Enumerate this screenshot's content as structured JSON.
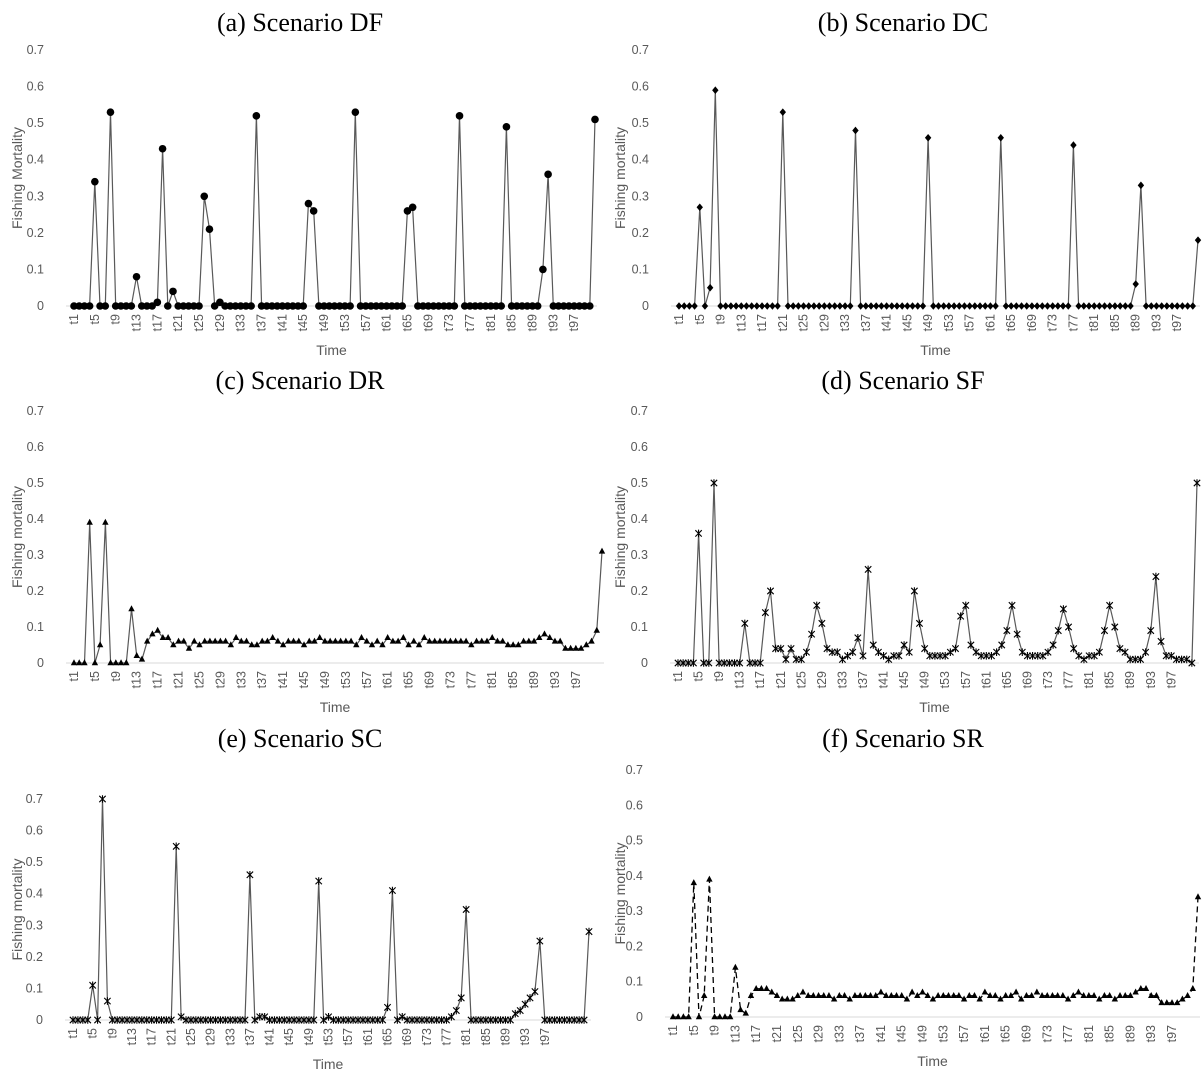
{
  "chart_data": [
    {
      "type": "line",
      "title": "(a) Scenario DF",
      "xlabel": "Time",
      "ylabel": "Fishing Mortality",
      "ylim": [
        0,
        0.7
      ],
      "yticks": [
        "0",
        "0.1",
        "0.2",
        "0.3",
        "0.4",
        "0.5",
        "0.6",
        "0.7"
      ],
      "xticks": [
        "t1",
        "t5",
        "t9",
        "t13",
        "t17",
        "t21",
        "t25",
        "t29",
        "t33",
        "t37",
        "t41",
        "t45",
        "t49",
        "t53",
        "t57",
        "t61",
        "t65",
        "t69",
        "t73",
        "t77",
        "t81",
        "t85",
        "t89",
        "t93",
        "t97"
      ],
      "marker": "circle",
      "dash": false,
      "grid": false,
      "values": [
        0,
        0,
        0,
        0,
        0.34,
        0,
        0,
        0.53,
        0,
        0,
        0,
        0,
        0.08,
        0,
        0,
        0,
        0.01,
        0.43,
        0,
        0.04,
        0,
        0,
        0,
        0,
        0,
        0.3,
        0.21,
        0,
        0.01,
        0,
        0,
        0,
        0,
        0,
        0,
        0.52,
        0,
        0,
        0,
        0,
        0,
        0,
        0,
        0,
        0,
        0.28,
        0.26,
        0,
        0,
        0,
        0,
        0,
        0,
        0,
        0.53,
        0,
        0,
        0,
        0,
        0,
        0,
        0,
        0,
        0,
        0.26,
        0.27,
        0,
        0,
        0,
        0,
        0,
        0,
        0,
        0,
        0.52,
        0,
        0,
        0,
        0,
        0,
        0,
        0,
        0,
        0.49,
        0,
        0,
        0,
        0,
        0,
        0,
        0.1,
        0.36,
        0,
        0,
        0,
        0,
        0,
        0,
        0,
        0,
        0.51
      ]
    },
    {
      "type": "line",
      "title": "(b) Scenario DC",
      "xlabel": "Time",
      "ylabel": "Fishing mortality",
      "ylim": [
        0,
        0.7
      ],
      "yticks": [
        "0",
        "0.1",
        "0.2",
        "0.3",
        "0.4",
        "0.5",
        "0.6",
        "0.7"
      ],
      "xticks": [
        "t1",
        "t5",
        "t9",
        "t13",
        "t17",
        "t21",
        "t25",
        "t29",
        "t33",
        "t37",
        "t41",
        "t45",
        "t49",
        "t53",
        "t57",
        "t61",
        "t65",
        "t69",
        "t73",
        "t77",
        "t81",
        "t85",
        "t89",
        "t93",
        "t97"
      ],
      "marker": "diamond",
      "dash": false,
      "grid": false,
      "values": [
        0,
        0,
        0,
        0,
        0.27,
        0,
        0.05,
        0.59,
        0,
        0,
        0,
        0,
        0,
        0,
        0,
        0,
        0,
        0,
        0,
        0,
        0.53,
        0,
        0,
        0,
        0,
        0,
        0,
        0,
        0,
        0,
        0,
        0,
        0,
        0,
        0.48,
        0,
        0,
        0,
        0,
        0,
        0,
        0,
        0,
        0,
        0,
        0,
        0,
        0,
        0.46,
        0,
        0,
        0,
        0,
        0,
        0,
        0,
        0,
        0,
        0,
        0,
        0,
        0,
        0.46,
        0,
        0,
        0,
        0,
        0,
        0,
        0,
        0,
        0,
        0,
        0,
        0,
        0,
        0.44,
        0,
        0,
        0,
        0,
        0,
        0,
        0,
        0,
        0,
        0,
        0,
        0.06,
        0.33,
        0,
        0,
        0,
        0,
        0,
        0,
        0,
        0,
        0,
        0,
        0.18
      ]
    },
    {
      "type": "line",
      "title": "(c) Scenario DR",
      "xlabel": "Time",
      "ylabel": "Fishing mortality",
      "ylim": [
        0,
        0.7
      ],
      "yticks": [
        "0",
        "0.1",
        "0.2",
        "0.3",
        "0.4",
        "0.5",
        "0.6",
        "0.7"
      ],
      "xticks": [
        "t1",
        "t5",
        "t9",
        "t13",
        "t17",
        "t21",
        "t25",
        "t29",
        "t33",
        "t37",
        "t41",
        "t45",
        "t49",
        "t53",
        "t57",
        "t61",
        "t65",
        "t69",
        "t73",
        "t77",
        "t81",
        "t85",
        "t89",
        "t93",
        "t97"
      ],
      "marker": "triangle",
      "dash": false,
      "grid": false,
      "values": [
        0,
        0,
        0,
        0.39,
        0,
        0.05,
        0.39,
        0,
        0,
        0,
        0,
        0.15,
        0.02,
        0.01,
        0.06,
        0.08,
        0.09,
        0.07,
        0.07,
        0.05,
        0.06,
        0.06,
        0.04,
        0.06,
        0.05,
        0.06,
        0.06,
        0.06,
        0.06,
        0.06,
        0.05,
        0.07,
        0.06,
        0.06,
        0.05,
        0.05,
        0.06,
        0.06,
        0.07,
        0.06,
        0.05,
        0.06,
        0.06,
        0.06,
        0.05,
        0.06,
        0.06,
        0.07,
        0.06,
        0.06,
        0.06,
        0.06,
        0.06,
        0.06,
        0.05,
        0.07,
        0.06,
        0.05,
        0.06,
        0.05,
        0.07,
        0.06,
        0.06,
        0.07,
        0.05,
        0.06,
        0.05,
        0.07,
        0.06,
        0.06,
        0.06,
        0.06,
        0.06,
        0.06,
        0.06,
        0.06,
        0.05,
        0.06,
        0.06,
        0.06,
        0.07,
        0.06,
        0.06,
        0.05,
        0.05,
        0.05,
        0.06,
        0.06,
        0.06,
        0.07,
        0.08,
        0.07,
        0.06,
        0.06,
        0.04,
        0.04,
        0.04,
        0.04,
        0.05,
        0.06,
        0.09,
        0.31
      ]
    },
    {
      "type": "line",
      "title": "(d) Scenario SF",
      "xlabel": "Time",
      "ylabel": "Fishing mortality",
      "ylim": [
        0,
        0.7
      ],
      "yticks": [
        "0",
        "0.1",
        "0.2",
        "0.3",
        "0.4",
        "0.5",
        "0.6",
        "0.7"
      ],
      "xticks": [
        "t1",
        "t5",
        "t9",
        "t13",
        "t17",
        "t21",
        "t25",
        "t29",
        "t33",
        "t37",
        "t41",
        "t45",
        "t49",
        "t53",
        "t57",
        "t61",
        "t65",
        "t69",
        "t73",
        "t77",
        "t81",
        "t85",
        "t89",
        "t93",
        "t97"
      ],
      "marker": "star",
      "dash": false,
      "grid": false,
      "values": [
        0,
        0,
        0,
        0,
        0.36,
        0,
        0,
        0.5,
        0,
        0,
        0,
        0,
        0,
        0.11,
        0,
        0,
        0,
        0.14,
        0.2,
        0.04,
        0.04,
        0.01,
        0.04,
        0.01,
        0.01,
        0.03,
        0.08,
        0.16,
        0.11,
        0.04,
        0.03,
        0.03,
        0.01,
        0.02,
        0.03,
        0.07,
        0.02,
        0.26,
        0.05,
        0.03,
        0.02,
        0.01,
        0.02,
        0.02,
        0.05,
        0.03,
        0.2,
        0.11,
        0.04,
        0.02,
        0.02,
        0.02,
        0.02,
        0.03,
        0.04,
        0.13,
        0.16,
        0.05,
        0.03,
        0.02,
        0.02,
        0.02,
        0.03,
        0.05,
        0.09,
        0.16,
        0.08,
        0.03,
        0.02,
        0.02,
        0.02,
        0.02,
        0.03,
        0.05,
        0.09,
        0.15,
        0.1,
        0.04,
        0.02,
        0.01,
        0.02,
        0.02,
        0.03,
        0.09,
        0.16,
        0.1,
        0.04,
        0.03,
        0.01,
        0.01,
        0.01,
        0.03,
        0.09,
        0.24,
        0.06,
        0.02,
        0.02,
        0.01,
        0.01,
        0.01,
        0,
        0.5
      ]
    },
    {
      "type": "line",
      "title": "(e) Scenario SC",
      "xlabel": "Time",
      "ylabel": "Fishing mortality",
      "ylim": [
        0,
        0.7
      ],
      "yticks": [
        "0",
        "0.1",
        "0.2",
        "0.3",
        "0.4",
        "0.5",
        "0.6",
        "0.7"
      ],
      "xticks": [
        "t1",
        "t5",
        "t9",
        "t13",
        "t17",
        "t21",
        "t25",
        "t29",
        "t33",
        "t37",
        "t41",
        "t45",
        "t49",
        "t53",
        "t57",
        "t61",
        "t65",
        "t69",
        "t73",
        "t77",
        "t81",
        "t85",
        "t89",
        "t93",
        "t97"
      ],
      "marker": "star",
      "dash": false,
      "grid": false,
      "values": [
        0,
        0,
        0,
        0,
        0.11,
        0,
        0.7,
        0.06,
        0,
        0,
        0,
        0,
        0,
        0,
        0,
        0,
        0,
        0,
        0,
        0,
        0,
        0.55,
        0.01,
        0,
        0,
        0,
        0,
        0,
        0,
        0,
        0,
        0,
        0,
        0,
        0,
        0,
        0.46,
        0,
        0.01,
        0.01,
        0,
        0,
        0,
        0,
        0,
        0,
        0,
        0,
        0,
        0,
        0.44,
        0,
        0.01,
        0,
        0,
        0,
        0,
        0,
        0,
        0,
        0,
        0,
        0,
        0,
        0.04,
        0.41,
        0,
        0.01,
        0,
        0,
        0,
        0,
        0,
        0,
        0,
        0,
        0,
        0.01,
        0.03,
        0.07,
        0.35,
        0,
        0,
        0,
        0,
        0,
        0,
        0,
        0,
        0,
        0.02,
        0.03,
        0.05,
        0.07,
        0.09,
        0.25,
        0,
        0,
        0,
        0,
        0,
        0,
        0,
        0,
        0,
        0.28
      ]
    },
    {
      "type": "line",
      "title": "(f) Scenario SR",
      "xlabel": "Time",
      "ylabel": "Fishing mortality",
      "ylim": [
        0,
        0.7
      ],
      "yticks": [
        "0",
        "0.1",
        "0.2",
        "0.3",
        "0.4",
        "0.5",
        "0.6",
        "0.7"
      ],
      "xticks": [
        "t1",
        "t5",
        "t9",
        "t13",
        "t17",
        "t21",
        "t25",
        "t29",
        "t33",
        "t37",
        "t41",
        "t45",
        "t49",
        "t53",
        "t57",
        "t61",
        "t65",
        "t69",
        "t73",
        "t77",
        "t81",
        "t85",
        "t89",
        "t93",
        "t97"
      ],
      "marker": "triangle",
      "dash": true,
      "grid": false,
      "values": [
        0,
        0,
        0,
        0,
        0.38,
        0,
        0.06,
        0.39,
        0,
        0,
        0,
        0,
        0.14,
        0.02,
        0.01,
        0.06,
        0.08,
        0.08,
        0.08,
        0.07,
        0.06,
        0.05,
        0.05,
        0.05,
        0.06,
        0.07,
        0.06,
        0.06,
        0.06,
        0.06,
        0.06,
        0.05,
        0.06,
        0.06,
        0.05,
        0.06,
        0.06,
        0.06,
        0.06,
        0.06,
        0.07,
        0.06,
        0.06,
        0.06,
        0.06,
        0.05,
        0.07,
        0.06,
        0.07,
        0.06,
        0.05,
        0.06,
        0.06,
        0.06,
        0.06,
        0.06,
        0.05,
        0.06,
        0.06,
        0.05,
        0.07,
        0.06,
        0.06,
        0.05,
        0.06,
        0.06,
        0.07,
        0.05,
        0.06,
        0.06,
        0.07,
        0.06,
        0.06,
        0.06,
        0.06,
        0.06,
        0.05,
        0.06,
        0.07,
        0.06,
        0.06,
        0.06,
        0.05,
        0.06,
        0.06,
        0.05,
        0.06,
        0.06,
        0.06,
        0.07,
        0.08,
        0.08,
        0.06,
        0.06,
        0.04,
        0.04,
        0.04,
        0.04,
        0.05,
        0.06,
        0.08,
        0.34
      ]
    }
  ]
}
